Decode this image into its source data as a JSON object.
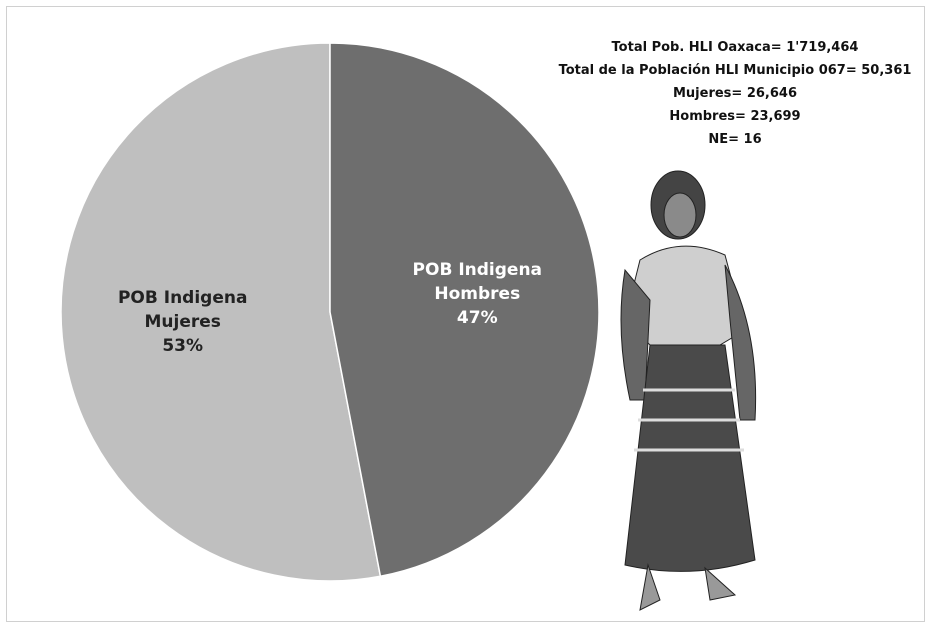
{
  "chart_data": {
    "type": "pie",
    "categories": [
      "POB Indigena Hombres",
      "POB Indigena Mujeres"
    ],
    "values": [
      47,
      53
    ],
    "value_labels": [
      "47%",
      "53%"
    ],
    "colors": [
      "#6e6e6e",
      "#bfbfbf"
    ],
    "label_colors": [
      "#ffffff",
      "#222222"
    ],
    "annotations": [
      "Total Pob. HLI Oaxaca= 1'719,464",
      "Total de la Población HLI Municipio 067= 50,361",
      "Mujeres= 26,646",
      "Hombres= 23,699",
      "NE= 16"
    ]
  }
}
